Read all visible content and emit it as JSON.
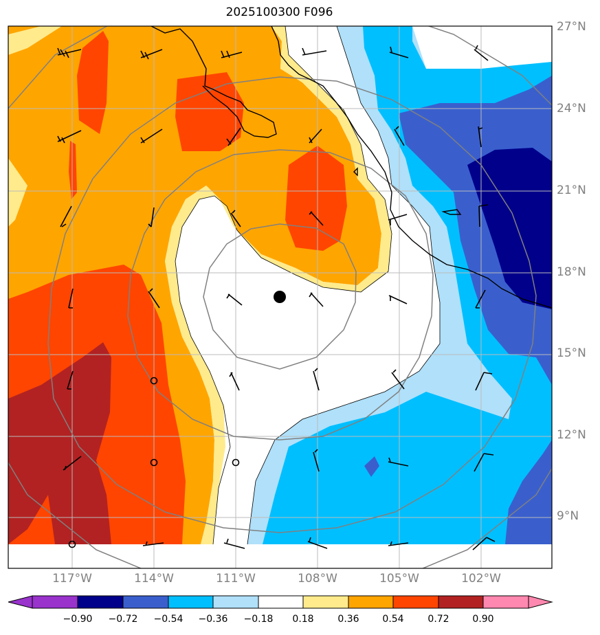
{
  "title": "2025100300 F096",
  "lat_labels": [
    "27°N",
    "24°N",
    "21°N",
    "18°N",
    "15°N",
    "12°N",
    "9°N"
  ],
  "lon_labels": [
    "117°W",
    "114°W",
    "111°W",
    "108°W",
    "105°W",
    "102°W"
  ],
  "colorbar": {
    "levels": [
      "−0.90",
      "−0.72",
      "−0.54",
      "−0.36",
      "−0.18",
      "0.18",
      "0.36",
      "0.54",
      "0.72",
      "0.90"
    ],
    "colors": [
      "#9933cc",
      "#00008b",
      "#3a5fcd",
      "#00bfff",
      "#b0e0fa",
      "#ffffff",
      "#ffeb8c",
      "#ffa500",
      "#ff4500",
      "#b22222",
      "#ff88b0"
    ]
  },
  "map": {
    "storm_center": {
      "lat": "17.1°N",
      "lon": "109.4°W"
    },
    "grid_color": "#bbbbbb",
    "ring_color": "#808080",
    "coastline_color": "#000000"
  }
}
